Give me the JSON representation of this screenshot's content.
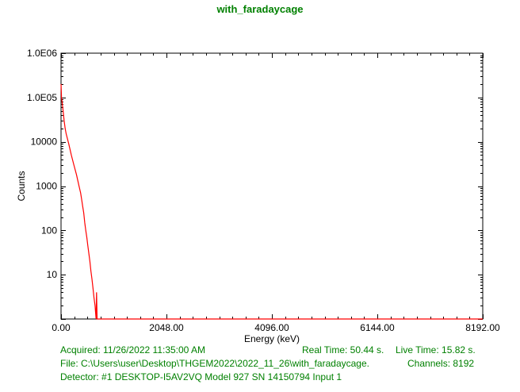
{
  "chart_data": {
    "type": "line",
    "title": "with_faradaycage",
    "xlabel": "Energy (keV)",
    "ylabel": "Counts",
    "xlim": [
      0,
      8192
    ],
    "ylim": [
      1,
      1000000
    ],
    "yscale": "log",
    "grid": false,
    "x_tick_labels": [
      "0.00",
      "2048.00",
      "4096.00",
      "6144.00",
      "8192.00"
    ],
    "x_ticks": [
      0,
      2048,
      4096,
      6144,
      8192
    ],
    "y_tick_labels": [
      "10",
      "100",
      "1000",
      "10000",
      "1.0E05",
      "1.0E06"
    ],
    "y_ticks": [
      10,
      100,
      1000,
      10000,
      100000,
      1000000
    ],
    "series": [
      {
        "color": "#ff0000",
        "x": [
          0,
          10,
          20,
          40,
          60,
          80,
          100,
          150,
          200,
          250,
          300,
          350,
          380,
          400,
          420,
          440,
          460,
          480,
          500,
          520,
          540,
          560,
          580,
          600,
          620,
          640,
          660,
          680,
          690,
          700,
          8192
        ],
        "y": [
          200000,
          100000,
          80000,
          50000,
          30000,
          20000,
          15000,
          9000,
          5000,
          3000,
          1800,
          1000,
          700,
          500,
          350,
          250,
          150,
          100,
          70,
          45,
          30,
          20,
          12,
          8,
          5,
          3,
          2,
          1,
          4,
          1,
          1
        ]
      }
    ]
  },
  "info": {
    "acquired": "Acquired:  11/26/2022 11:35:00 AM",
    "real_time": "Real Time: 50.44 s.",
    "live_time": "Live Time: 15.82 s.",
    "file": "File:  C:\\Users\\user\\Desktop\\THGEM2022\\2022_11_26\\with_faradaycage.",
    "channels": "Channels:  8192",
    "detector": "Detector:  #1 DESKTOP-I5AV2VQ Model 927 SN 14150794 Input 1"
  }
}
